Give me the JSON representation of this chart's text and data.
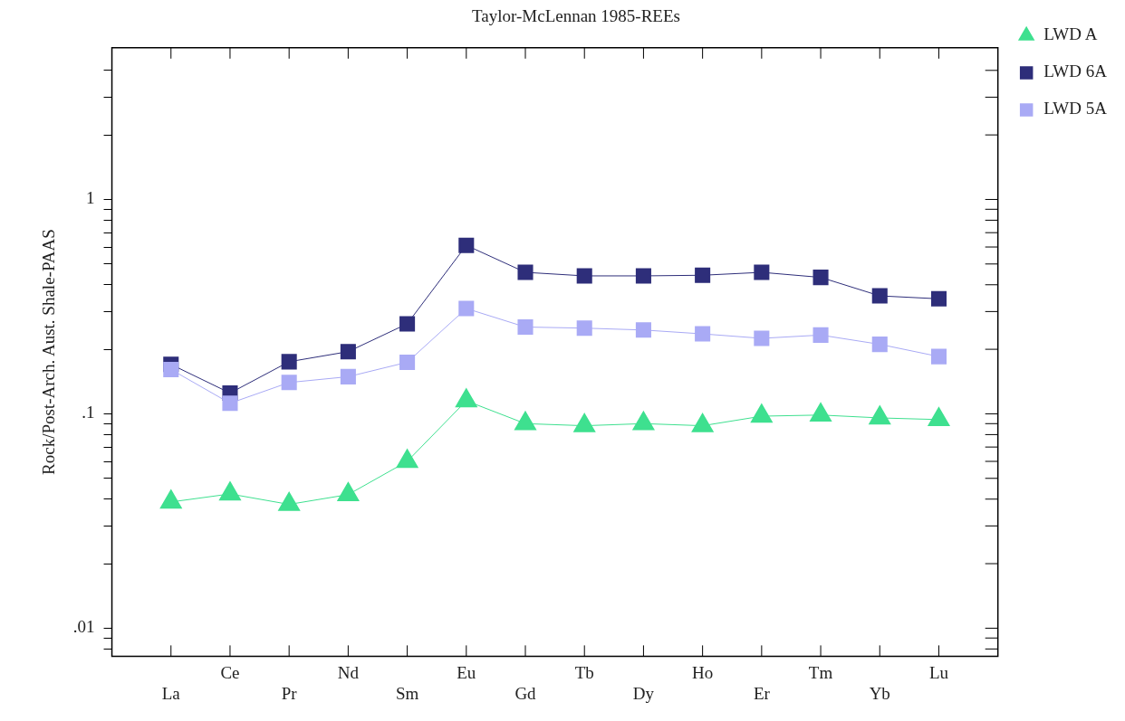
{
  "chart_data": {
    "type": "line",
    "title": "Taylor-McLennan 1985-REEs",
    "ylabel": "Rock/Post-Arch. Aust. Shale-PAAS",
    "categories": [
      "La",
      "Ce",
      "Pr",
      "Nd",
      "Sm",
      "Eu",
      "Gd",
      "Tb",
      "Dy",
      "Ho",
      "Er",
      "Tm",
      "Yb",
      "Lu"
    ],
    "series": [
      {
        "name": "LWD A",
        "color": "#3ee08f",
        "marker": "triangle",
        "values": [
          0.0388,
          0.0423,
          0.0378,
          0.042,
          0.06,
          0.115,
          0.09,
          0.088,
          0.09,
          0.088,
          0.0975,
          0.0987,
          0.0957,
          0.094
        ]
      },
      {
        "name": "LWD 6A",
        "color": "#2e2e7a",
        "marker": "square",
        "values": [
          0.17,
          0.125,
          0.175,
          0.195,
          0.263,
          0.611,
          0.457,
          0.44,
          0.44,
          0.443,
          0.457,
          0.433,
          0.355,
          0.344
        ]
      },
      {
        "name": "LWD 5A",
        "color": "#a9aaf5",
        "marker": "square",
        "values": [
          0.161,
          0.112,
          0.14,
          0.149,
          0.174,
          0.31,
          0.254,
          0.251,
          0.246,
          0.236,
          0.225,
          0.233,
          0.211,
          0.185
        ]
      }
    ],
    "log": true,
    "ylim": [
      0.0074,
      5.1
    ],
    "yticks": [
      {
        "value": 0.008,
        "label": null
      },
      {
        "value": 0.009,
        "label": null
      },
      {
        "value": 0.01,
        "label": ".01"
      },
      {
        "value": 0.02,
        "label": null
      },
      {
        "value": 0.03,
        "label": null
      },
      {
        "value": 0.04,
        "label": null
      },
      {
        "value": 0.05,
        "label": null
      },
      {
        "value": 0.06,
        "label": null
      },
      {
        "value": 0.07,
        "label": null
      },
      {
        "value": 0.08,
        "label": null
      },
      {
        "value": 0.09,
        "label": null
      },
      {
        "value": 0.1,
        "label": ".1"
      },
      {
        "value": 0.2,
        "label": null
      },
      {
        "value": 0.3,
        "label": null
      },
      {
        "value": 0.4,
        "label": null
      },
      {
        "value": 0.5,
        "label": null
      },
      {
        "value": 0.6,
        "label": null
      },
      {
        "value": 0.7,
        "label": null
      },
      {
        "value": 0.8,
        "label": null
      },
      {
        "value": 0.9,
        "label": null
      },
      {
        "value": 1,
        "label": "1"
      },
      {
        "value": 2,
        "label": null
      },
      {
        "value": 3,
        "label": null
      },
      {
        "value": 4,
        "label": null
      }
    ],
    "grid": false,
    "legend": "top right",
    "line_style": "solid"
  }
}
